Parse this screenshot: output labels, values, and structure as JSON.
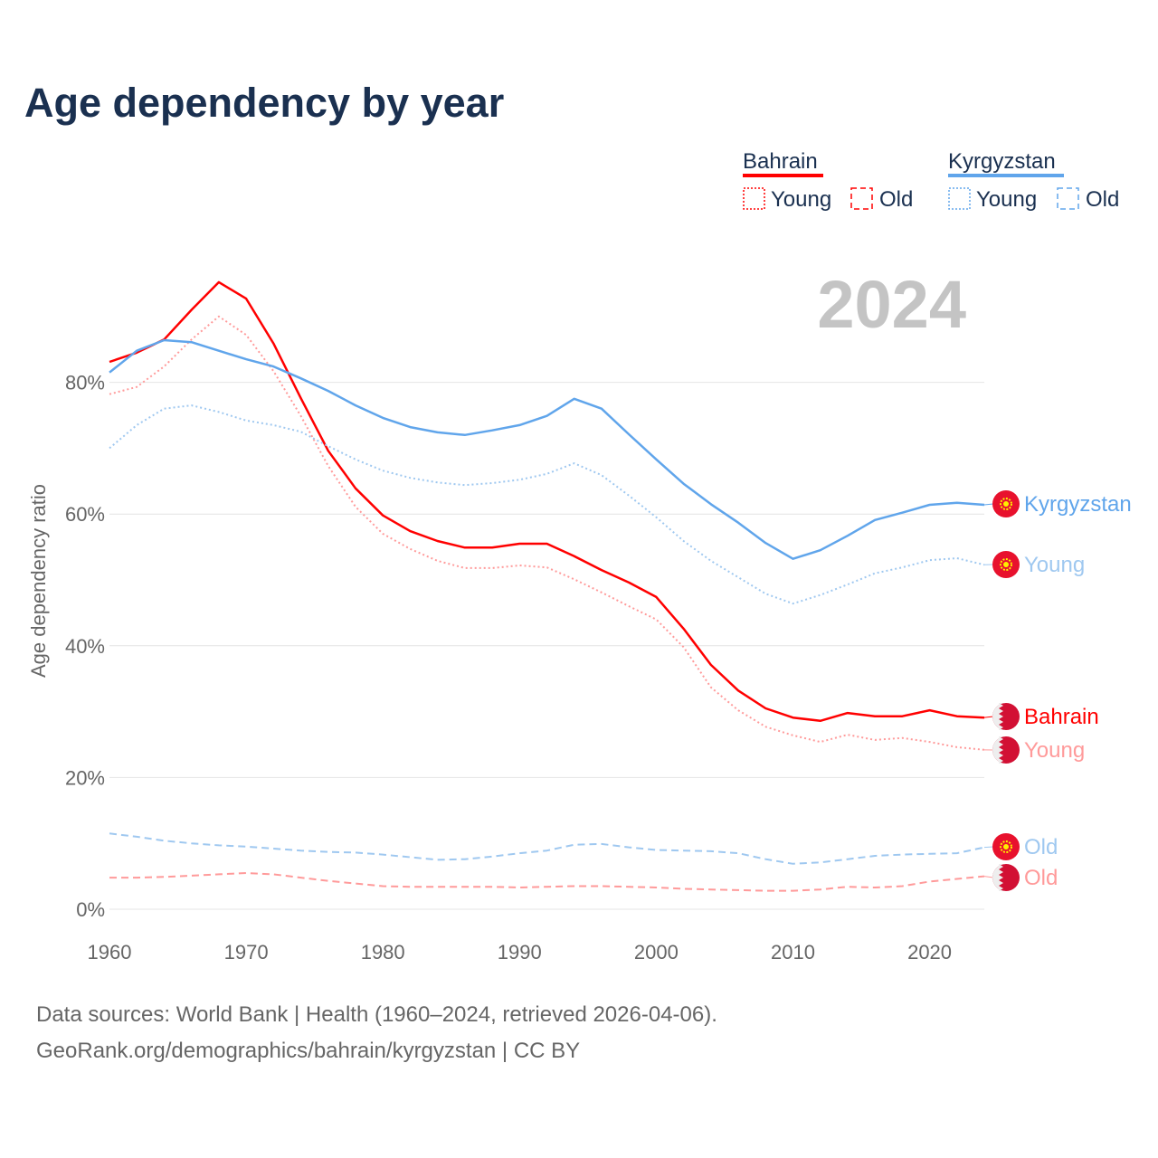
{
  "title": "Age dependency by year",
  "watermark_year": "2024",
  "legend": {
    "groups": [
      {
        "country": "Bahrain",
        "color": "#ff0000",
        "young_label": "Young",
        "old_label": "Old"
      },
      {
        "country": "Kyrgyzstan",
        "color": "#60a5eb",
        "young_label": "Young",
        "old_label": "Old"
      }
    ]
  },
  "footer": {
    "line1": "Data sources: World Bank | Health (1960–2024, retrieved 2026-04-06).",
    "line2": "GeoRank.org/demographics/bahrain/kyrgyzstan | CC BY"
  },
  "chart_data": {
    "type": "line",
    "title": "Age dependency by year",
    "xlabel": "",
    "ylabel": "Age dependency ratio",
    "xlim": [
      1960,
      2024
    ],
    "ylim": [
      0,
      100
    ],
    "x_ticks": [
      "1960",
      "1970",
      "1980",
      "1990",
      "2000",
      "2010",
      "2020"
    ],
    "y_ticks": [
      "0%",
      "20%",
      "40%",
      "60%",
      "80%"
    ],
    "y_tick_values": [
      0,
      20,
      40,
      60,
      80
    ],
    "grid": true,
    "x": [
      1960,
      1962,
      1964,
      1966,
      1968,
      1970,
      1972,
      1974,
      1976,
      1978,
      1980,
      1982,
      1984,
      1986,
      1988,
      1990,
      1992,
      1994,
      1996,
      1998,
      2000,
      2002,
      2004,
      2006,
      2008,
      2010,
      2012,
      2014,
      2016,
      2018,
      2020,
      2022,
      2024
    ],
    "series": [
      {
        "name": "Bahrain",
        "label": "Bahrain",
        "style": "solid",
        "color": "#ff0000",
        "values": [
          83.1,
          84.5,
          86.5,
          91,
          95.2,
          92.7,
          85.9,
          77.6,
          69.6,
          63.9,
          59.8,
          57.4,
          55.9,
          54.9,
          54.9,
          55.5,
          55.5,
          53.6,
          51.5,
          49.6,
          47.4,
          42.6,
          37.1,
          33.2,
          30.5,
          29.1,
          28.6,
          29.8,
          29.3,
          29.3,
          30.2,
          29.3,
          29.1
        ]
      },
      {
        "name": "Bahrain Young",
        "label": "Young",
        "style": "dotted",
        "color": "#ff9a9a",
        "values": [
          78.2,
          79.3,
          82.4,
          86.5,
          90,
          87.2,
          81.7,
          74.9,
          67.3,
          61.1,
          57,
          54.7,
          52.9,
          51.8,
          51.8,
          52.2,
          51.9,
          50.1,
          48.1,
          46,
          44,
          39.8,
          33.7,
          30.2,
          27.7,
          26.4,
          25.4,
          26.5,
          25.7,
          26,
          25.4,
          24.6,
          24.2
        ]
      },
      {
        "name": "Bahrain Old",
        "label": "Old",
        "style": "dashed",
        "color": "#ff9a9a",
        "values": [
          4.8,
          4.8,
          4.9,
          5.1,
          5.3,
          5.5,
          5.3,
          4.8,
          4.3,
          3.9,
          3.5,
          3.4,
          3.4,
          3.4,
          3.4,
          3.3,
          3.4,
          3.5,
          3.5,
          3.4,
          3.3,
          3.1,
          3.0,
          2.9,
          2.8,
          2.8,
          3.0,
          3.4,
          3.3,
          3.5,
          4.2,
          4.6,
          5.0
        ]
      },
      {
        "name": "Kyrgyzstan",
        "label": "Kyrgyzstan",
        "style": "solid",
        "color": "#60a5eb",
        "values": [
          81.5,
          84.8,
          86.4,
          86.1,
          84.8,
          83.5,
          82.4,
          80.6,
          78.7,
          76.5,
          74.6,
          73.2,
          72.4,
          72,
          72.7,
          73.5,
          74.9,
          77.5,
          76,
          72.1,
          68.3,
          64.6,
          61.5,
          58.7,
          55.6,
          53.2,
          54.5,
          56.7,
          59.1,
          60.2,
          61.4,
          61.7,
          61.4
        ]
      },
      {
        "name": "Kyrgyzstan Young",
        "label": "Young",
        "style": "dotted",
        "color": "#9fc8f0",
        "values": [
          70,
          73.5,
          76,
          76.5,
          75.5,
          74.2,
          73.5,
          72.5,
          70.3,
          68.3,
          66.6,
          65.5,
          64.8,
          64.4,
          64.7,
          65.2,
          66.1,
          67.7,
          65.9,
          62.8,
          59.5,
          55.9,
          52.9,
          50.4,
          47.9,
          46.4,
          47.7,
          49.3,
          51,
          51.9,
          53,
          53.3,
          52.3
        ]
      },
      {
        "name": "Kyrgyzstan Old",
        "label": "Old",
        "style": "dashed",
        "color": "#9fc8f0",
        "values": [
          11.5,
          11,
          10.4,
          10,
          9.7,
          9.5,
          9.2,
          8.9,
          8.7,
          8.6,
          8.3,
          7.9,
          7.5,
          7.6,
          8,
          8.5,
          8.9,
          9.8,
          9.9,
          9.4,
          9,
          8.9,
          8.8,
          8.5,
          7.6,
          6.9,
          7.1,
          7.6,
          8.1,
          8.3,
          8.4,
          8.5,
          9.4
        ]
      }
    ]
  }
}
